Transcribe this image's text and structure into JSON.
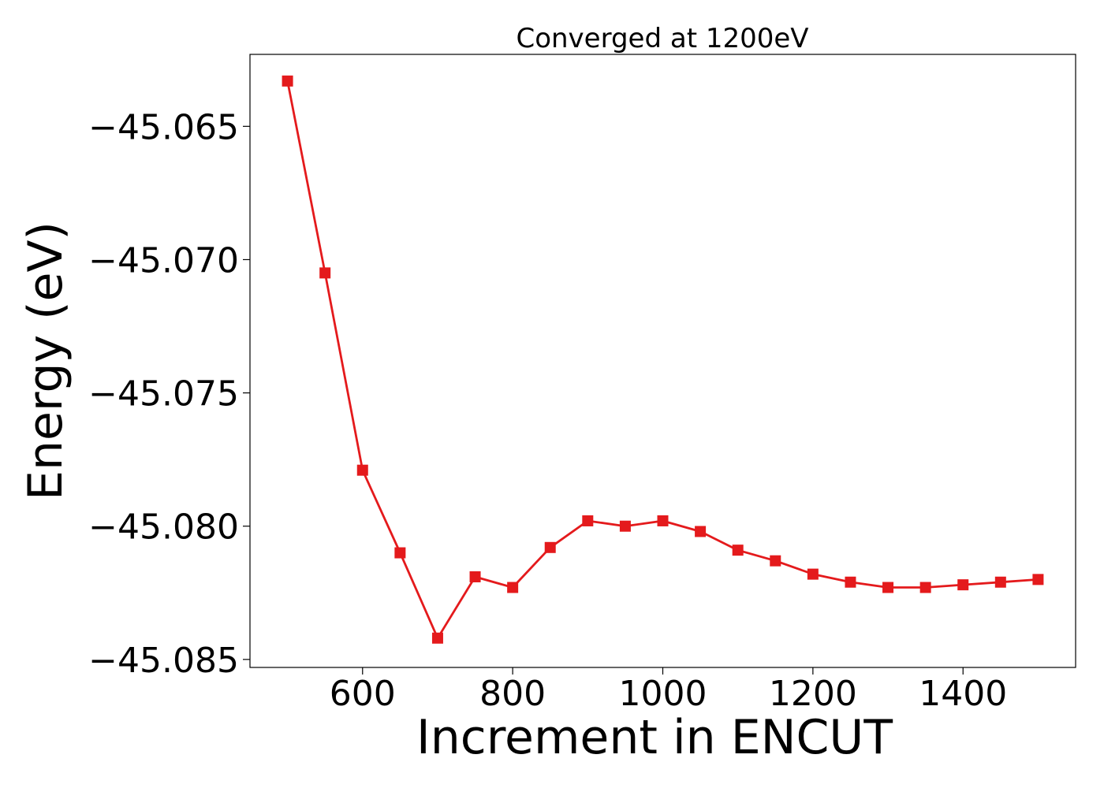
{
  "chart_data": {
    "type": "line",
    "title": "Converged at 1200eV",
    "xlabel": "Increment in ENCUT",
    "ylabel": "Energy (eV)",
    "xlim": [
      450,
      1550
    ],
    "ylim": [
      -45.0853,
      -45.0623
    ],
    "xticks": [
      600,
      800,
      1000,
      1200,
      1400
    ],
    "yticks": [
      -45.065,
      -45.07,
      -45.075,
      -45.08,
      -45.085
    ],
    "ytick_labels": [
      "−45.065",
      "−45.070",
      "−45.075",
      "−45.080",
      "−45.085"
    ],
    "grid": false,
    "marker": "square",
    "color": "#e41a1c",
    "series": [
      {
        "x": [
          500,
          550,
          600,
          650,
          700,
          750,
          800,
          850,
          900,
          950,
          1000,
          1050,
          1100,
          1150,
          1200,
          1250,
          1300,
          1350,
          1400,
          1450,
          1500
        ],
        "y": [
          -45.0633,
          -45.0705,
          -45.0779,
          -45.081,
          -45.0842,
          -45.0819,
          -45.0823,
          -45.0808,
          -45.0798,
          -45.08,
          -45.0798,
          -45.0802,
          -45.0809,
          -45.0813,
          -45.0818,
          -45.0821,
          -45.0823,
          -45.0823,
          -45.0822,
          -45.0821,
          -45.082
        ]
      }
    ]
  }
}
